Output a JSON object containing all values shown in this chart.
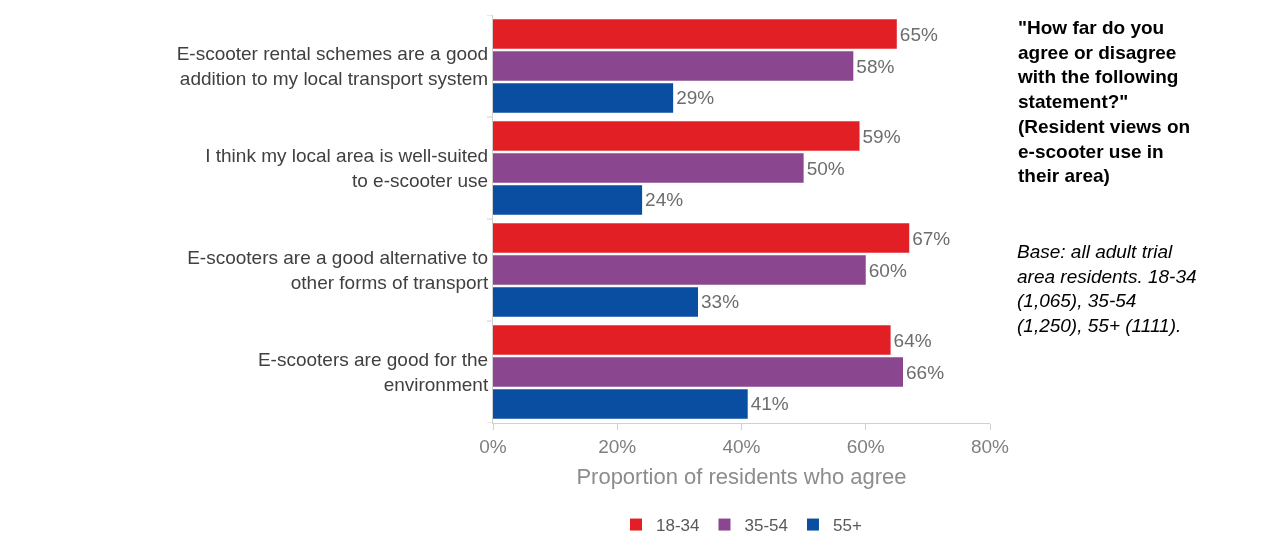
{
  "chart_data": {
    "type": "bar",
    "orientation": "horizontal",
    "categories": [
      "E-scooter rental schemes are a good addition to my local transport system",
      "I think my local area is well-suited to e-scooter use",
      "E-scooters are a good alternative to other forms of transport",
      "E-scooters are good for the environment"
    ],
    "series": [
      {
        "name": "18-34",
        "color": "#e31f26",
        "values": [
          65,
          59,
          67,
          64
        ],
        "value_labels": [
          "65%",
          "59%",
          "67%",
          "64%"
        ]
      },
      {
        "name": "35-54",
        "color": "#8b4690",
        "values": [
          58,
          50,
          60,
          66
        ],
        "value_labels": [
          "58%",
          "50%",
          "60%",
          "66%"
        ]
      },
      {
        "name": "55+",
        "color": "#0a4ea2",
        "values": [
          29,
          24,
          33,
          41
        ],
        "value_labels": [
          "29%",
          "24%",
          "33%",
          "41%"
        ]
      }
    ],
    "xlabel": "Proportion of residents who agree",
    "xlim": [
      0,
      80
    ],
    "xticks": [
      {
        "value": 0,
        "label": "0%"
      },
      {
        "value": 20,
        "label": "20%"
      },
      {
        "value": 40,
        "label": "40%"
      },
      {
        "value": 60,
        "label": "60%"
      },
      {
        "value": 80,
        "label": "80%"
      }
    ],
    "grid": false,
    "legend": "bottom",
    "annotations": [
      "\"How far do you agree or disagree with the following statement?\" (Resident views on e-scooter use in their area)",
      "Base: all adult trial area residents. 18-34 (1,065), 35-54 (1,250), 55+ (1111)."
    ]
  }
}
